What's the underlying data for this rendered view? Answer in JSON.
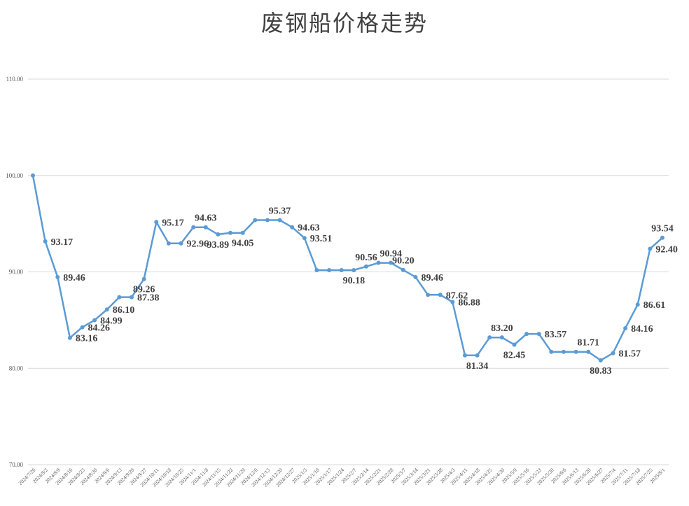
{
  "chart_data": {
    "type": "line",
    "title": "废钢船价格走势",
    "xlabel": "",
    "ylabel": "",
    "ylim": [
      70,
      110
    ],
    "y_ticks": [
      "70.00",
      "80.00",
      "90.00",
      "100.00",
      "110.00"
    ],
    "grid": true,
    "legend": "none",
    "line_color": "#5b9bd5",
    "categories": [
      "2024/7/26",
      "2024/8/2",
      "2024/8/9",
      "2024/8/16",
      "2024/8/23",
      "2024/8/30",
      "2024/9/6",
      "2024/9/13",
      "2024/9/20",
      "2024/9/27",
      "2024/10/11",
      "2024/10/18",
      "2024/10/25",
      "2024/11/1",
      "2024/11/8",
      "2024/11/15",
      "2024/11/22",
      "2024/11/29",
      "2024/12/6",
      "2024/12/13",
      "2024/12/20",
      "2024/12/27",
      "2025/1/3",
      "2025/1/10",
      "2025/1/17",
      "2025/1/24",
      "2025/2/7",
      "2025/2/14",
      "2025/2/21",
      "2025/2/28",
      "2025/3/7",
      "2025/3/14",
      "2025/3/21",
      "2025/3/28",
      "2025/4/3",
      "2025/4/11",
      "2025/4/18",
      "2025/4/25",
      "2025/4/30",
      "2025/5/9",
      "2025/5/16",
      "2025/5/23",
      "2025/5/30",
      "2025/6/6",
      "2025/6/13",
      "2025/6/20",
      "2025/6/27",
      "2025/7/4",
      "2025/7/11",
      "2025/7/18",
      "2025/7/25",
      "2025/8/1"
    ],
    "values": [
      100,
      93.17,
      89.46,
      83.16,
      84.26,
      84.99,
      86.1,
      87.38,
      87.38,
      89.26,
      95.17,
      92.96,
      92.96,
      94.63,
      94.63,
      93.89,
      94.05,
      94.05,
      95.37,
      95.37,
      95.37,
      94.63,
      93.51,
      90.18,
      90.18,
      90.18,
      90.18,
      90.56,
      90.94,
      90.94,
      90.2,
      89.46,
      87.62,
      87.62,
      86.88,
      81.34,
      81.34,
      83.2,
      83.2,
      82.45,
      83.57,
      83.57,
      81.71,
      81.71,
      81.71,
      81.71,
      80.83,
      81.57,
      84.16,
      86.61,
      92.4,
      93.54
    ],
    "data_labels": [
      {
        "index": 1,
        "text": "93.17",
        "pos": "right"
      },
      {
        "index": 2,
        "text": "89.46",
        "pos": "right"
      },
      {
        "index": 3,
        "text": "83.16",
        "pos": "right"
      },
      {
        "index": 4,
        "text": "84.26",
        "pos": "right"
      },
      {
        "index": 5,
        "text": "84.99",
        "pos": "right"
      },
      {
        "index": 6,
        "text": "86.10",
        "pos": "right"
      },
      {
        "index": 8,
        "text": "87.38",
        "pos": "right"
      },
      {
        "index": 9,
        "text": "89.26",
        "pos": "below"
      },
      {
        "index": 10,
        "text": "95.17",
        "pos": "right"
      },
      {
        "index": 12,
        "text": "92.96",
        "pos": "right"
      },
      {
        "index": 14,
        "text": "94.63",
        "pos": "above"
      },
      {
        "index": 15,
        "text": "93.89",
        "pos": "below"
      },
      {
        "index": 17,
        "text": "94.05",
        "pos": "below"
      },
      {
        "index": 20,
        "text": "95.37",
        "pos": "above"
      },
      {
        "index": 21,
        "text": "94.63",
        "pos": "right"
      },
      {
        "index": 22,
        "text": "93.51",
        "pos": "right"
      },
      {
        "index": 26,
        "text": "90.18",
        "pos": "below"
      },
      {
        "index": 27,
        "text": "90.56",
        "pos": "above"
      },
      {
        "index": 29,
        "text": "90.94",
        "pos": "above"
      },
      {
        "index": 30,
        "text": "90.20",
        "pos": "above"
      },
      {
        "index": 31,
        "text": "89.46",
        "pos": "right"
      },
      {
        "index": 33,
        "text": "87.62",
        "pos": "right"
      },
      {
        "index": 34,
        "text": "86.88",
        "pos": "right"
      },
      {
        "index": 36,
        "text": "81.34",
        "pos": "below"
      },
      {
        "index": 38,
        "text": "83.20",
        "pos": "above"
      },
      {
        "index": 39,
        "text": "82.45",
        "pos": "below"
      },
      {
        "index": 41,
        "text": "83.57",
        "pos": "right"
      },
      {
        "index": 45,
        "text": "81.71",
        "pos": "above"
      },
      {
        "index": 46,
        "text": "80.83",
        "pos": "below"
      },
      {
        "index": 47,
        "text": "81.57",
        "pos": "right"
      },
      {
        "index": 48,
        "text": "84.16",
        "pos": "right"
      },
      {
        "index": 49,
        "text": "86.61",
        "pos": "right"
      },
      {
        "index": 50,
        "text": "92.40",
        "pos": "right"
      },
      {
        "index": 51,
        "text": "93.54",
        "pos": "above"
      }
    ]
  }
}
